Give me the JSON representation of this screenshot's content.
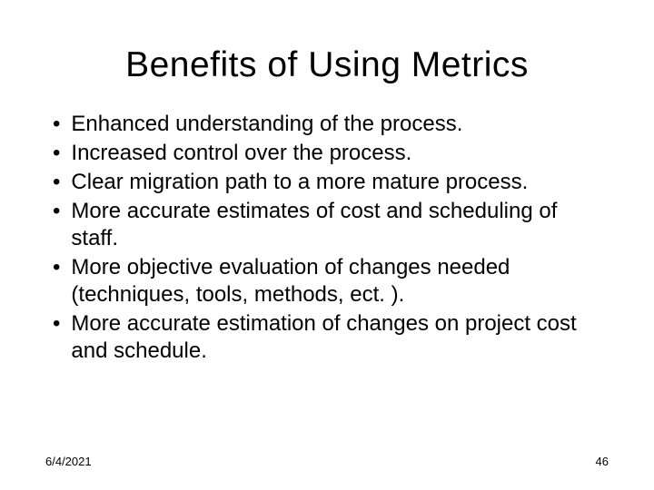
{
  "title": "Benefits of Using Metrics",
  "bullets": [
    "Enhanced understanding of the process.",
    "Increased control over the process.",
    "Clear migration path to a more mature process.",
    "More accurate estimates of cost and scheduling of staff.",
    "More objective evaluation of changes needed (techniques, tools, methods, ect. ).",
    "More accurate estimation of changes on project cost and schedule."
  ],
  "footer": {
    "date": "6/4/2021",
    "page": "46"
  },
  "style": {
    "background_color": "#ffffff",
    "text_color": "#000000",
    "title_fontsize": 39,
    "body_fontsize": 24,
    "footer_fontsize": 13,
    "font_family": "Arial"
  }
}
